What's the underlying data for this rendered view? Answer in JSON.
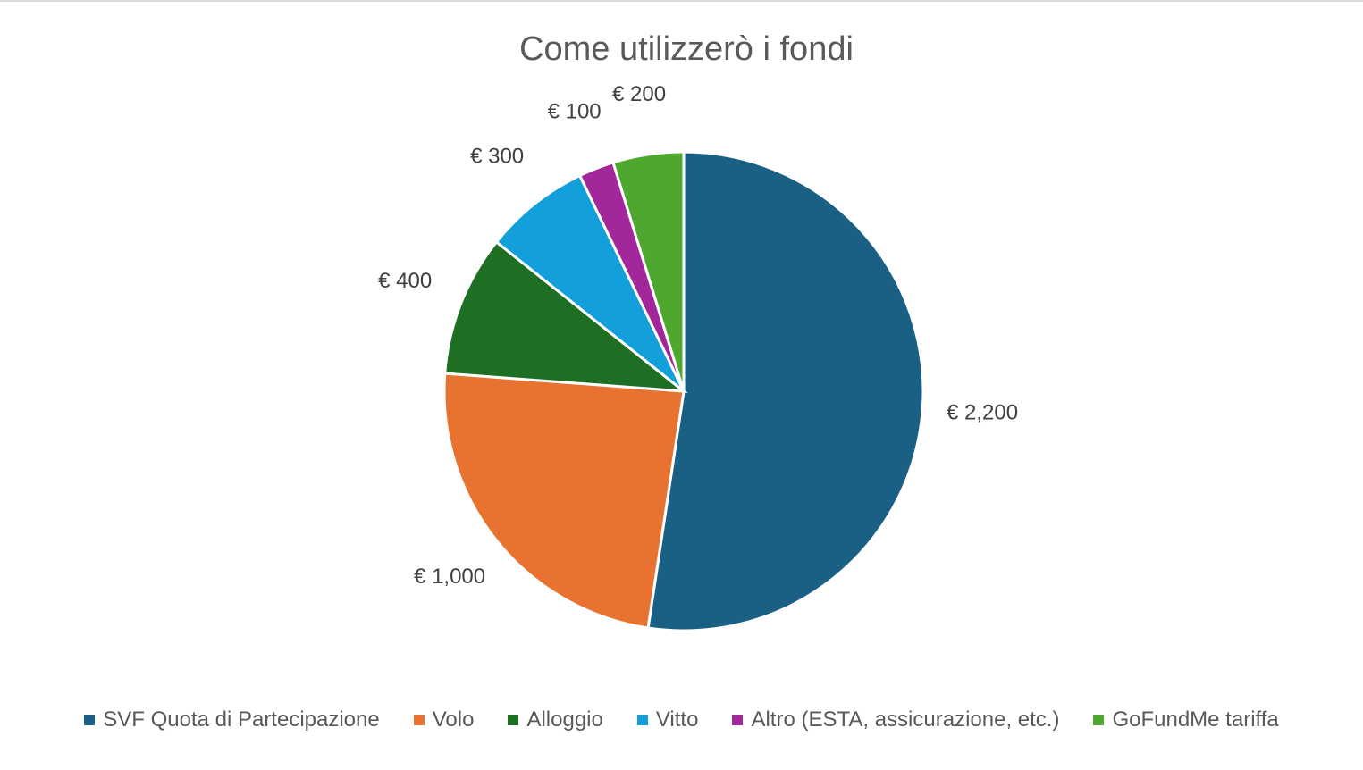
{
  "chart_data": {
    "type": "pie",
    "title": "Come utilizzerò i fondi",
    "categories": [
      "SVF Quota di Partecipazione",
      "Volo",
      "Alloggio",
      "Vitto",
      "Altro (ESTA, assicurazione, etc.)",
      "GoFundMe tariffa"
    ],
    "values": [
      2200,
      1000,
      400,
      300,
      100,
      200
    ],
    "value_labels": [
      "€ 2,200",
      "€ 1,000",
      "€ 400",
      "€ 300",
      "€ 100",
      "€ 200"
    ],
    "colors": [
      "#1a5f84",
      "#e87331",
      "#1e6e24",
      "#139fd9",
      "#a2279a",
      "#4ea72e"
    ],
    "legend": "bottom"
  }
}
